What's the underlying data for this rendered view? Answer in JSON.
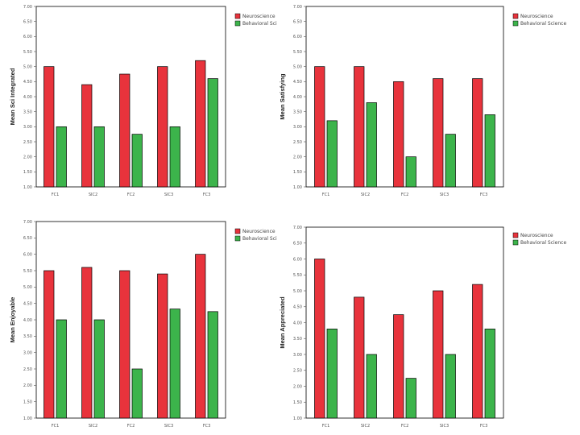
{
  "chart_data": [
    {
      "type": "bar",
      "ylabel": "Mean Sci Integrated",
      "ylim": [
        1,
        7
      ],
      "yticks": [
        "1.00",
        "1.50",
        "2.00",
        "2.50",
        "3.00",
        "3.50",
        "4.00",
        "4.50",
        "5.00",
        "5.50",
        "6.00",
        "6.50",
        "7.00"
      ],
      "categories": [
        "FC1",
        "SIC2",
        "FC2",
        "SIC3",
        "FC3"
      ],
      "legend": "top-right",
      "series": [
        {
          "name": "Neuroscience",
          "color": "#e8333c",
          "values": [
            5.0,
            4.4,
            4.75,
            5.0,
            5.2
          ]
        },
        {
          "name": "Behavioral Sci",
          "color": "#3cb44b",
          "values": [
            3.0,
            3.0,
            2.75,
            3.0,
            4.6
          ]
        }
      ]
    },
    {
      "type": "bar",
      "ylabel": "Mean Satisfying",
      "ylim": [
        1,
        7
      ],
      "yticks": [
        "1.00",
        "1.50",
        "2.00",
        "2.50",
        "3.00",
        "3.50",
        "4.00",
        "4.50",
        "5.00",
        "5.50",
        "6.00",
        "6.50",
        "7.00"
      ],
      "categories": [
        "FC1",
        "SIC2",
        "FC2",
        "SIC3",
        "FC3"
      ],
      "legend": "top-right",
      "series": [
        {
          "name": "Neuroscience",
          "color": "#e8333c",
          "values": [
            5.0,
            5.0,
            4.5,
            4.6,
            4.6
          ]
        },
        {
          "name": "Behavioral Science",
          "color": "#3cb44b",
          "values": [
            3.2,
            3.8,
            2.0,
            2.75,
            3.4
          ]
        }
      ]
    },
    {
      "type": "bar",
      "ylabel": "Mean Enjoyable",
      "ylim": [
        1,
        7
      ],
      "yticks": [
        "1.00",
        "1.50",
        "2.00",
        "2.50",
        "3.00",
        "3.50",
        "4.00",
        "4.50",
        "5.00",
        "5.50",
        "6.00",
        "6.50",
        "7.00"
      ],
      "categories": [
        "FC1",
        "SIC2",
        "FC2",
        "SIC3",
        "FC3"
      ],
      "legend": "top-right",
      "series": [
        {
          "name": "Neuroscience",
          "color": "#e8333c",
          "values": [
            5.5,
            5.6,
            5.5,
            5.4,
            6.0
          ]
        },
        {
          "name": "Behavioral Sci",
          "color": "#3cb44b",
          "values": [
            4.0,
            4.0,
            2.5,
            4.33,
            4.25
          ]
        }
      ]
    },
    {
      "type": "bar",
      "ylabel": "Mean Appreciated",
      "ylim": [
        1,
        7
      ],
      "yticks": [
        "1.00",
        "1.50",
        "2.00",
        "2.50",
        "3.00",
        "3.50",
        "4.00",
        "4.50",
        "5.00",
        "5.50",
        "6.00",
        "6.50",
        "7.00"
      ],
      "categories": [
        "FC1",
        "SIC2",
        "FC2",
        "SIC3",
        "FC3"
      ],
      "legend": "top-right",
      "series": [
        {
          "name": "Neuroscience",
          "color": "#e8333c",
          "values": [
            6.0,
            4.8,
            4.25,
            5.0,
            5.2
          ]
        },
        {
          "name": "Behavioral Science",
          "color": "#3cb44b",
          "values": [
            3.8,
            3.0,
            2.25,
            3.0,
            3.8
          ]
        }
      ]
    }
  ]
}
